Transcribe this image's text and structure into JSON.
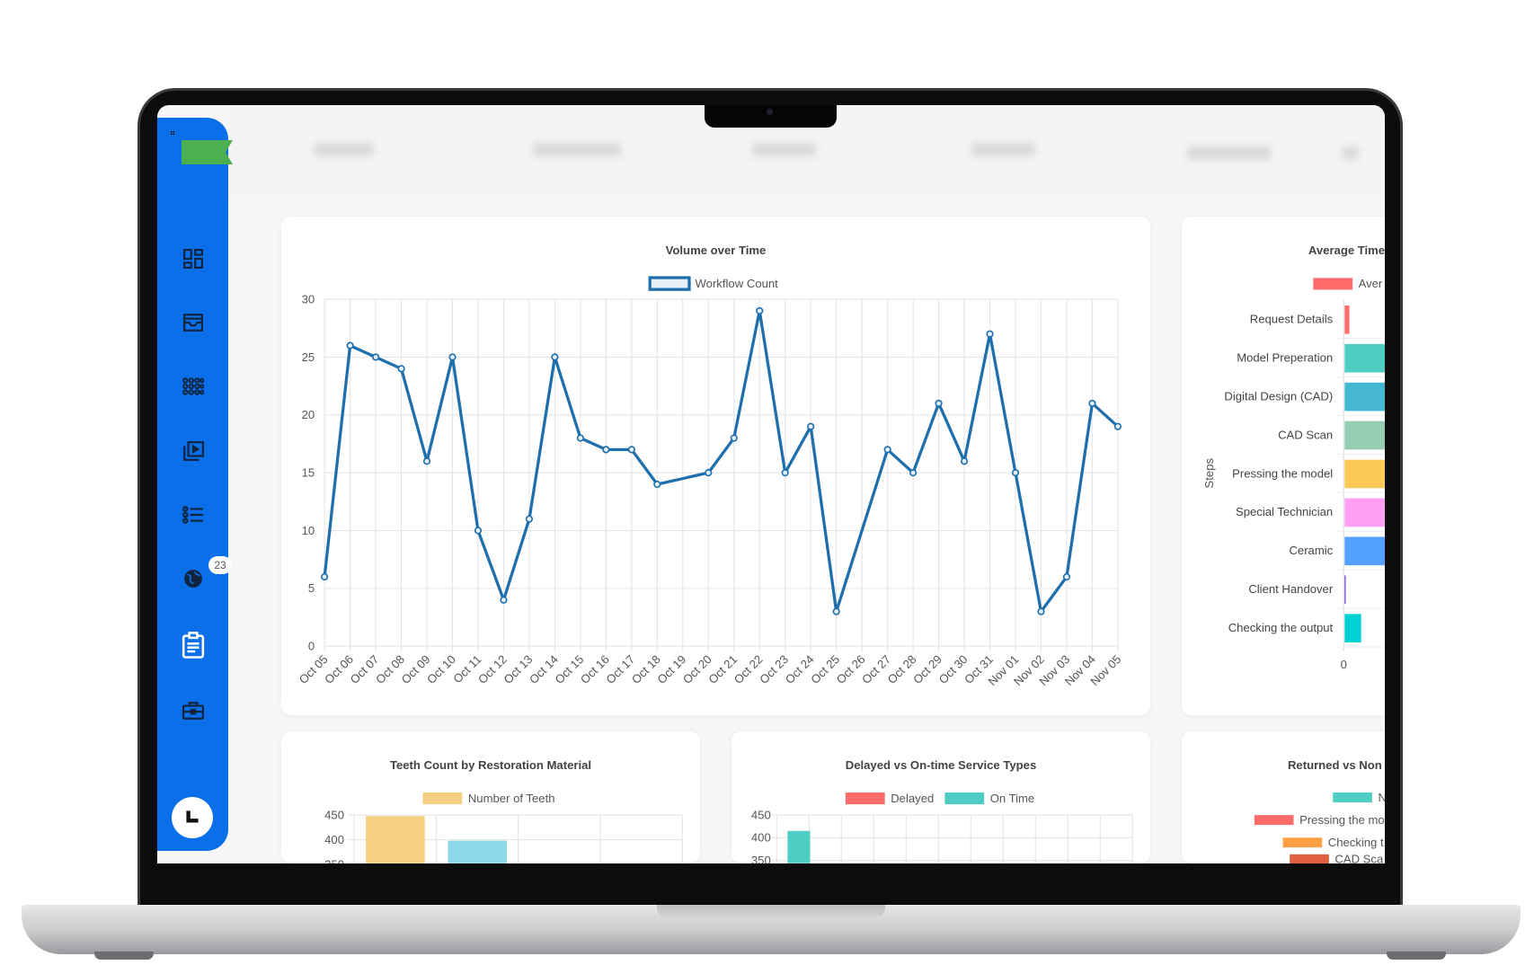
{
  "sidebar": {
    "brand_color": "#0a6fe8",
    "items": [
      {
        "icon": "dashboard-icon"
      },
      {
        "icon": "inbox-icon"
      },
      {
        "icon": "grid-dots-icon"
      },
      {
        "icon": "video-library-icon"
      },
      {
        "icon": "list-icon"
      },
      {
        "icon": "globe-icon",
        "badge": "23"
      },
      {
        "icon": "clipboard-icon",
        "active": true
      },
      {
        "icon": "briefcase-icon"
      }
    ],
    "avatar_icon": "user-avatar-icon"
  },
  "chart_data": [
    {
      "type": "line",
      "title": "Volume over Time",
      "legend": [
        "Workflow Count"
      ],
      "color": "#1f6fad",
      "categories": [
        "Oct 05",
        "Oct 06",
        "Oct 07",
        "Oct 08",
        "Oct 09",
        "Oct 10",
        "Oct 11",
        "Oct 12",
        "Oct 13",
        "Oct 14",
        "Oct 15",
        "Oct 16",
        "Oct 17",
        "Oct 18",
        "Oct 19",
        "Oct 20",
        "Oct 21",
        "Oct 22",
        "Oct 23",
        "Oct 24",
        "Oct 25",
        "Oct 26",
        "Oct 27",
        "Oct 28",
        "Oct 29",
        "Oct 30",
        "Oct 31",
        "Nov 01",
        "Nov 02",
        "Nov 03",
        "Nov 04",
        "Nov 05"
      ],
      "series": [
        {
          "name": "Workflow Count",
          "values": [
            6,
            26,
            25,
            24,
            16,
            25,
            10,
            4,
            11,
            25,
            18,
            17,
            17,
            14,
            null,
            15,
            18,
            29,
            15,
            19,
            3,
            null,
            17,
            15,
            21,
            16,
            27,
            15,
            3,
            6,
            21,
            19
          ]
        }
      ],
      "ylim": [
        0,
        30
      ],
      "yticks": [
        "0",
        "5",
        "10",
        "15",
        "20",
        "25",
        "30"
      ],
      "grid": true,
      "legend_position": "top"
    },
    {
      "type": "bar",
      "orientation": "horizontal",
      "title": "Average Time",
      "legend": [
        "Aver"
      ],
      "ylabel": "Steps",
      "xticks": [
        "0"
      ],
      "categories": [
        "Request Details",
        "Model Preperation",
        "Digital Design (CAD)",
        "CAD Scan",
        "Pressing the model",
        "Special Technician",
        "Ceramic",
        "Client Handover",
        "Checking the output"
      ],
      "values": [
        0.4,
        10,
        10,
        10,
        10,
        10,
        10,
        0.05,
        1.4
      ],
      "colors": [
        "#ff6b6b",
        "#4ecdc4",
        "#45b7d1",
        "#96ceb4",
        "#feca57",
        "#ff9ff3",
        "#54a0ff",
        "#5f27cd",
        "#00d2d3"
      ]
    },
    {
      "type": "bar",
      "title": "Teeth Count by Restoration Material",
      "legend": [
        "Number of Teeth"
      ],
      "yticks": [
        "450",
        "400",
        "350"
      ],
      "values": [
        448,
        398
      ],
      "colors": [
        "#f5d083",
        "#8dd9ea"
      ]
    },
    {
      "type": "bar",
      "title": "Delayed vs On-time Service Types",
      "legend": [
        "Delayed",
        "On Time"
      ],
      "legend_colors": [
        "#ff6b6b",
        "#4ecdc4"
      ],
      "yticks": [
        "450",
        "400",
        "350"
      ],
      "series": [
        {
          "name": "On Time",
          "values": [
            415
          ]
        }
      ]
    },
    {
      "type": "bar",
      "title": "Returned vs Non",
      "legend": [
        "N",
        "Pressing the mo",
        "Checking t",
        "CAD Sca"
      ],
      "legend_colors": [
        "#4ecdc4",
        "#ff6b6b",
        "#ff9f43",
        "#e15f41"
      ]
    }
  ]
}
